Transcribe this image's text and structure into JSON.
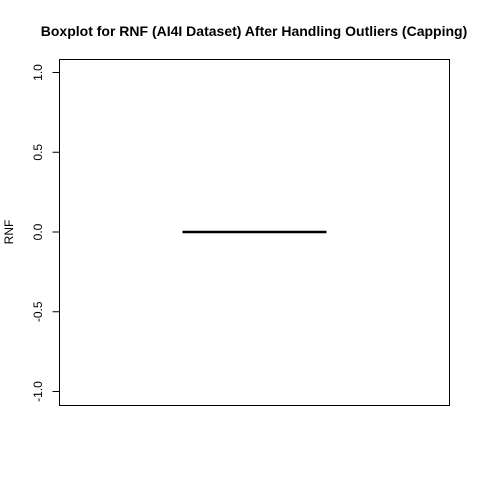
{
  "chart_data": {
    "type": "boxplot",
    "title": "Boxplot for RNF (AI4I Dataset) After Handling Outliers (Capping)",
    "xlabel": "",
    "ylabel": "RNF",
    "ylim": [
      -1.0,
      1.0
    ],
    "yticks": [
      -1.0,
      -0.5,
      0.0,
      0.5,
      1.0
    ],
    "ytick_labels": [
      "-1.0",
      "-0.5",
      "0.0",
      "0.5",
      "1.0"
    ],
    "boxes": [
      {
        "min": 0,
        "q1": 0,
        "median": 0,
        "q3": 0,
        "max": 0,
        "outliers": []
      }
    ],
    "grid": false,
    "legend": "none",
    "colors": {
      "box_line": "#000000",
      "frame": "#000000",
      "background": "#ffffff"
    }
  }
}
